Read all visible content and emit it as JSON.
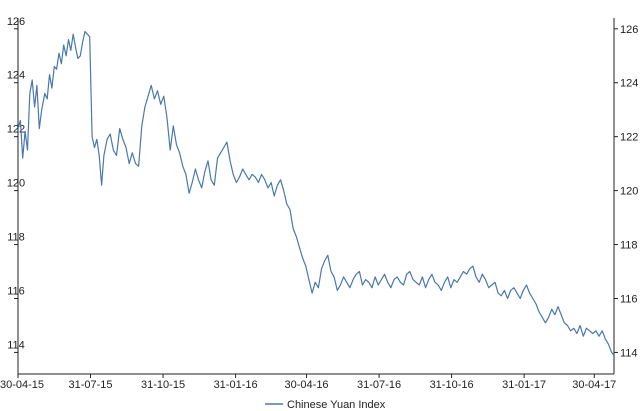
{
  "chart_data": {
    "type": "line",
    "title": "",
    "xlabel": "",
    "ylabel": "",
    "ylim": [
      113.2,
      126.4
    ],
    "yticks": [
      114,
      116,
      118,
      120,
      122,
      124,
      126
    ],
    "y_axis_sides": [
      "left",
      "right"
    ],
    "grid": false,
    "legend_placement": "bottom-center",
    "line_color": "#4a78ad",
    "axis_color": "#222222",
    "xticks": [
      {
        "date": "2015-04-30",
        "label": "30-04-15"
      },
      {
        "date": "2015-07-31",
        "label": "31-07-15"
      },
      {
        "date": "2015-10-31",
        "label": "31-10-15"
      },
      {
        "date": "2016-01-31",
        "label": "31-01-16"
      },
      {
        "date": "2016-04-30",
        "label": "30-04-16"
      },
      {
        "date": "2016-07-31",
        "label": "31-07-16"
      },
      {
        "date": "2016-10-31",
        "label": "31-10-16"
      },
      {
        "date": "2017-01-31",
        "label": "31-01-17"
      },
      {
        "date": "2017-04-30",
        "label": "30-04-17"
      }
    ],
    "x_range": [
      "2015-04-30",
      "2017-05-25"
    ],
    "series": [
      {
        "name": "Chinese Yuan Index",
        "x": [
          "2015-04-30",
          "2015-05-03",
          "2015-05-06",
          "2015-05-09",
          "2015-05-12",
          "2015-05-15",
          "2015-05-18",
          "2015-05-21",
          "2015-05-24",
          "2015-05-27",
          "2015-05-30",
          "2015-06-03",
          "2015-06-06",
          "2015-06-09",
          "2015-06-12",
          "2015-06-15",
          "2015-06-18",
          "2015-06-21",
          "2015-06-24",
          "2015-06-27",
          "2015-06-30",
          "2015-07-03",
          "2015-07-06",
          "2015-07-09",
          "2015-07-12",
          "2015-07-15",
          "2015-07-18",
          "2015-07-21",
          "2015-07-24",
          "2015-07-27",
          "2015-07-30",
          "2015-08-02",
          "2015-08-05",
          "2015-08-08",
          "2015-08-11",
          "2015-08-14",
          "2015-08-17",
          "2015-08-21",
          "2015-08-25",
          "2015-08-29",
          "2015-09-02",
          "2015-09-06",
          "2015-09-10",
          "2015-09-14",
          "2015-09-18",
          "2015-09-22",
          "2015-09-26",
          "2015-09-30",
          "2015-10-04",
          "2015-10-08",
          "2015-10-12",
          "2015-10-16",
          "2015-10-20",
          "2015-10-24",
          "2015-10-28",
          "2015-11-01",
          "2015-11-05",
          "2015-11-09",
          "2015-11-13",
          "2015-11-17",
          "2015-11-21",
          "2015-11-25",
          "2015-11-29",
          "2015-12-03",
          "2015-12-07",
          "2015-12-11",
          "2015-12-15",
          "2015-12-19",
          "2015-12-23",
          "2015-12-27",
          "2015-12-31",
          "2016-01-04",
          "2016-01-08",
          "2016-01-12",
          "2016-01-16",
          "2016-01-20",
          "2016-01-24",
          "2016-01-28",
          "2016-02-01",
          "2016-02-05",
          "2016-02-09",
          "2016-02-13",
          "2016-02-17",
          "2016-02-21",
          "2016-02-25",
          "2016-02-29",
          "2016-03-04",
          "2016-03-08",
          "2016-03-12",
          "2016-03-16",
          "2016-03-20",
          "2016-03-24",
          "2016-03-28",
          "2016-04-01",
          "2016-04-05",
          "2016-04-09",
          "2016-04-13",
          "2016-04-17",
          "2016-04-21",
          "2016-04-25",
          "2016-04-29",
          "2016-05-03",
          "2016-05-07",
          "2016-05-11",
          "2016-05-15",
          "2016-05-19",
          "2016-05-23",
          "2016-05-27",
          "2016-05-31",
          "2016-06-04",
          "2016-06-08",
          "2016-06-12",
          "2016-06-16",
          "2016-06-20",
          "2016-06-24",
          "2016-06-28",
          "2016-07-02",
          "2016-07-06",
          "2016-07-10",
          "2016-07-14",
          "2016-07-18",
          "2016-07-22",
          "2016-07-26",
          "2016-07-30",
          "2016-08-03",
          "2016-08-07",
          "2016-08-11",
          "2016-08-15",
          "2016-08-19",
          "2016-08-23",
          "2016-08-27",
          "2016-08-31",
          "2016-09-04",
          "2016-09-08",
          "2016-09-12",
          "2016-09-16",
          "2016-09-20",
          "2016-09-24",
          "2016-09-28",
          "2016-10-02",
          "2016-10-06",
          "2016-10-10",
          "2016-10-14",
          "2016-10-18",
          "2016-10-22",
          "2016-10-26",
          "2016-10-30",
          "2016-11-03",
          "2016-11-07",
          "2016-11-11",
          "2016-11-15",
          "2016-11-19",
          "2016-11-23",
          "2016-11-27",
          "2016-12-01",
          "2016-12-05",
          "2016-12-09",
          "2016-12-13",
          "2016-12-17",
          "2016-12-21",
          "2016-12-25",
          "2016-12-29",
          "2017-01-02",
          "2017-01-06",
          "2017-01-10",
          "2017-01-14",
          "2017-01-18",
          "2017-01-22",
          "2017-01-26",
          "2017-01-30",
          "2017-02-03",
          "2017-02-07",
          "2017-02-11",
          "2017-02-15",
          "2017-02-19",
          "2017-02-23",
          "2017-02-27",
          "2017-03-03",
          "2017-03-07",
          "2017-03-11",
          "2017-03-15",
          "2017-03-19",
          "2017-03-23",
          "2017-03-27",
          "2017-03-31",
          "2017-04-04",
          "2017-04-08",
          "2017-04-12",
          "2017-04-16",
          "2017-04-20",
          "2017-04-24",
          "2017-04-28",
          "2017-05-02",
          "2017-05-06",
          "2017-05-10",
          "2017-05-14",
          "2017-05-18",
          "2017-05-22",
          "2017-05-25"
        ],
        "values": [
          122.3,
          122.6,
          121.2,
          122.2,
          121.5,
          123.6,
          124.1,
          123.1,
          123.9,
          122.3,
          123.0,
          123.6,
          123.4,
          124.3,
          123.8,
          124.6,
          124.5,
          125.1,
          124.7,
          125.4,
          125.0,
          125.6,
          125.2,
          125.8,
          125.3,
          124.9,
          125.0,
          125.5,
          125.9,
          125.8,
          125.7,
          122.0,
          121.6,
          121.9,
          121.3,
          120.2,
          121.3,
          121.9,
          122.1,
          121.5,
          121.3,
          122.3,
          121.9,
          121.6,
          121.0,
          121.4,
          121.0,
          120.9,
          122.4,
          123.1,
          123.5,
          123.9,
          123.4,
          123.7,
          123.2,
          123.5,
          122.7,
          121.5,
          122.4,
          121.7,
          121.4,
          120.9,
          120.6,
          119.9,
          120.3,
          120.8,
          120.4,
          120.1,
          120.7,
          121.1,
          120.4,
          120.2,
          121.2,
          121.4,
          121.6,
          121.8,
          121.1,
          120.6,
          120.3,
          120.5,
          120.8,
          120.6,
          120.4,
          120.6,
          120.5,
          120.3,
          120.6,
          120.4,
          120.1,
          120.3,
          119.8,
          120.2,
          120.4,
          120.0,
          119.5,
          119.3,
          118.6,
          118.3,
          117.9,
          117.5,
          117.2,
          116.7,
          116.2,
          116.6,
          116.4,
          117.1,
          117.4,
          117.6,
          117.0,
          116.8,
          116.3,
          116.5,
          116.8,
          116.6,
          116.4,
          116.7,
          116.9,
          117.0,
          116.5,
          116.7,
          116.6,
          116.4,
          116.8,
          116.5,
          116.7,
          116.9,
          116.6,
          116.4,
          116.7,
          116.8,
          116.6,
          116.5,
          116.9,
          117.0,
          116.7,
          116.6,
          116.5,
          116.8,
          116.4,
          116.7,
          116.9,
          116.6,
          116.5,
          116.3,
          116.6,
          116.8,
          116.4,
          116.7,
          116.6,
          116.8,
          117.0,
          116.9,
          117.1,
          117.2,
          116.8,
          116.6,
          116.9,
          116.7,
          116.4,
          116.5,
          116.6,
          116.2,
          116.1,
          116.3,
          116.0,
          116.3,
          116.4,
          116.2,
          116.0,
          116.3,
          116.5,
          116.2,
          116.0,
          115.8,
          115.5,
          115.3,
          115.1,
          115.3,
          115.6,
          115.4,
          115.7,
          115.4,
          115.1,
          115.0,
          114.8,
          114.9,
          114.7,
          115.0,
          114.6,
          114.9,
          114.8,
          114.7,
          114.8,
          114.6,
          114.8,
          114.5,
          114.3,
          114.0,
          113.9
        ]
      }
    ]
  }
}
